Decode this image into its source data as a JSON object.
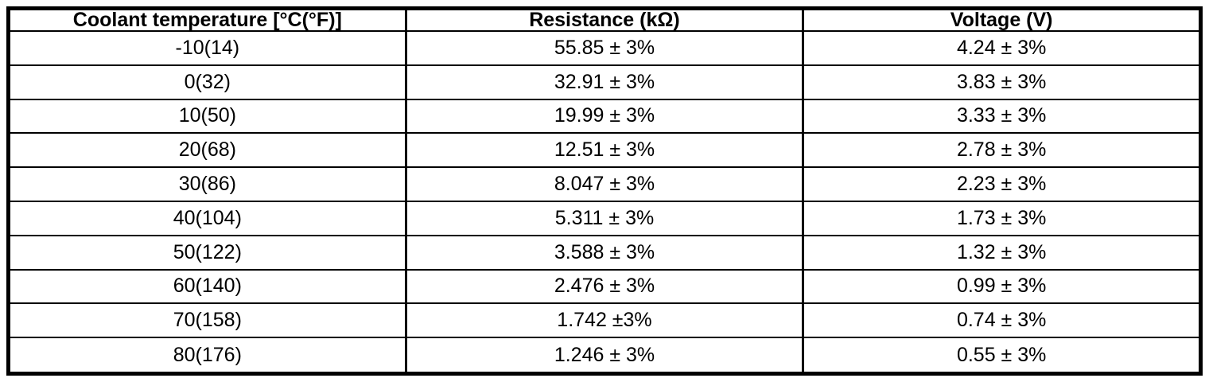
{
  "page": {
    "background_color": "#ffffff",
    "text_color": "#000000",
    "border_color": "#000000"
  },
  "table": {
    "columns": [
      {
        "label": "Coolant temperature [°C(°F)]"
      },
      {
        "label": "Resistance (kΩ)"
      },
      {
        "label": "Voltage (V)"
      }
    ],
    "rows": [
      {
        "temperature": "-10(14)",
        "resistance": "55.85 ± 3%",
        "voltage": "4.24 ± 3%"
      },
      {
        "temperature": "0(32)",
        "resistance": "32.91 ± 3%",
        "voltage": "3.83 ± 3%"
      },
      {
        "temperature": "10(50)",
        "resistance": "19.99 ± 3%",
        "voltage": "3.33 ± 3%"
      },
      {
        "temperature": "20(68)",
        "resistance": "12.51 ± 3%",
        "voltage": "2.78 ± 3%"
      },
      {
        "temperature": "30(86)",
        "resistance": "8.047 ± 3%",
        "voltage": "2.23 ± 3%"
      },
      {
        "temperature": "40(104)",
        "resistance": "5.311 ± 3%",
        "voltage": "1.73 ± 3%"
      },
      {
        "temperature": "50(122)",
        "resistance": "3.588 ± 3%",
        "voltage": "1.32 ± 3%"
      },
      {
        "temperature": "60(140)",
        "resistance": "2.476 ± 3%",
        "voltage": "0.99 ± 3%"
      },
      {
        "temperature": "70(158)",
        "resistance": "1.742 ±3%",
        "voltage": "0.74 ± 3%"
      },
      {
        "temperature": "80(176)",
        "resistance": "1.246 ± 3%",
        "voltage": "0.55 ± 3%"
      }
    ]
  },
  "chart_data": {
    "type": "table",
    "title": "",
    "columns": [
      "Coolant temperature [°C(°F)]",
      "Resistance (kΩ)",
      "Voltage (V)"
    ],
    "rows": [
      [
        "-10(14)",
        "55.85 ± 3%",
        "4.24 ± 3%"
      ],
      [
        "0(32)",
        "32.91 ± 3%",
        "3.83 ± 3%"
      ],
      [
        "10(50)",
        "19.99 ± 3%",
        "3.33 ± 3%"
      ],
      [
        "20(68)",
        "12.51 ± 3%",
        "2.78 ± 3%"
      ],
      [
        "30(86)",
        "8.047 ± 3%",
        "2.23 ± 3%"
      ],
      [
        "40(104)",
        "5.311 ± 3%",
        "1.73 ± 3%"
      ],
      [
        "50(122)",
        "3.588 ± 3%",
        "1.32 ± 3%"
      ],
      [
        "60(140)",
        "2.476 ± 3%",
        "0.99 ± 3%"
      ],
      [
        "70(158)",
        "1.742 ±3%",
        "0.74 ± 3%"
      ],
      [
        "80(176)",
        "1.246 ± 3%",
        "0.55 ± 3%"
      ]
    ],
    "temperature_c": [
      -10,
      0,
      10,
      20,
      30,
      40,
      50,
      60,
      70,
      80
    ],
    "temperature_f": [
      14,
      32,
      50,
      68,
      86,
      104,
      122,
      140,
      158,
      176
    ],
    "resistance_kohm": [
      55.85,
      32.91,
      19.99,
      12.51,
      8.047,
      5.311,
      3.588,
      2.476,
      1.742,
      1.246
    ],
    "voltage_v": [
      4.24,
      3.83,
      3.33,
      2.78,
      2.23,
      1.73,
      1.32,
      0.99,
      0.74,
      0.55
    ],
    "tolerance": "±3%"
  }
}
